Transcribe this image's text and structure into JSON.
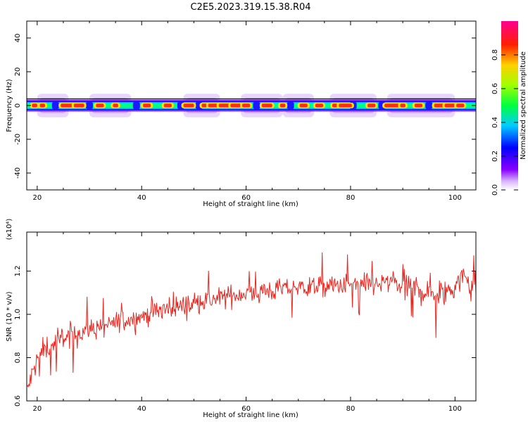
{
  "title": "C2E5.2023.319.15.38.R04",
  "chart_data": [
    {
      "type": "heatmap",
      "xlabel": "Height of straight line (km)",
      "ylabel": "Frequency (Hz)",
      "xlim": [
        18,
        104
      ],
      "ylim": [
        -50,
        50
      ],
      "xticks": [
        "20",
        "40",
        "60",
        "80",
        "100"
      ],
      "yticks": [
        "40",
        "20",
        "0",
        "-20",
        "-40"
      ],
      "xtick_values": [
        20,
        40,
        60,
        80,
        100
      ],
      "ytick_values": [
        40,
        20,
        0,
        -20,
        -40
      ],
      "band": {
        "center_frequency": 0,
        "half_width": 2,
        "halo_half_width": 7,
        "hot_spots_x": [
          19.5,
          21,
          26,
          28,
          32,
          35,
          41,
          45,
          49,
          52,
          54,
          56,
          58,
          60,
          64,
          67,
          71,
          74,
          77,
          79,
          84,
          88,
          90,
          93,
          97,
          99,
          101
        ],
        "hot_spots_width": [
          1,
          1,
          3,
          2,
          1.5,
          1,
          1.5,
          1.5,
          2,
          1,
          2.5,
          2.5,
          2,
          1.5,
          2,
          1,
          1.5,
          1.5,
          1,
          2.5,
          1.5,
          3,
          1,
          1.5,
          2,
          2,
          1.5
        ],
        "dropouts_x": [
          23.5,
          30,
          39,
          47.5,
          51,
          62,
          68.5,
          80.5,
          86,
          95
        ],
        "halo_x": [
          [
            20,
            26
          ],
          [
            30,
            38
          ],
          [
            48,
            55
          ],
          [
            59,
            67
          ],
          [
            67,
            73
          ],
          [
            76,
            85
          ],
          [
            87,
            100
          ]
        ]
      },
      "colorbar": {
        "label": "Normalized spectral amplitude",
        "ticks": [
          "0.0",
          "0.2",
          "0.4",
          "0.6",
          "0.8"
        ],
        "tick_values": [
          0,
          0.2,
          0.4,
          0.6,
          0.8
        ],
        "range": [
          0,
          1
        ]
      }
    },
    {
      "type": "line",
      "xlabel": "Height of straight line (km)",
      "ylabel": "SNR (10 * v/v)",
      "exponent_label": "(x10⁴)",
      "xlim": [
        18,
        104
      ],
      "ylim": [
        0.6,
        1.38
      ],
      "xticks": [
        "20",
        "40",
        "60",
        "80",
        "100"
      ],
      "yticks": [
        "1.2",
        "1.0",
        "0.8",
        "0.6"
      ],
      "xtick_values": [
        20,
        40,
        60,
        80,
        100
      ],
      "ytick_values": [
        1.2,
        1.0,
        0.8,
        0.6
      ],
      "series": [
        {
          "color": "#e8261f",
          "x": [
            18,
            19,
            20,
            21,
            22,
            23,
            24,
            25,
            26,
            27,
            28,
            29,
            30,
            32,
            34,
            36,
            38,
            40,
            42,
            44,
            46,
            48,
            50,
            52,
            54,
            56,
            58,
            60,
            62,
            64,
            66,
            68,
            70,
            72,
            74,
            76,
            78,
            80,
            82,
            84,
            86,
            88,
            90,
            92,
            94,
            96,
            98,
            100,
            101,
            102,
            103,
            104
          ],
          "y": [
            0.64,
            0.72,
            0.79,
            0.83,
            0.85,
            0.86,
            0.87,
            0.89,
            0.9,
            0.9,
            0.91,
            0.92,
            0.93,
            0.94,
            0.95,
            0.97,
            0.98,
            0.99,
            1.01,
            1.02,
            1.03,
            1.04,
            1.05,
            1.06,
            1.07,
            1.08,
            1.09,
            1.1,
            1.1,
            1.11,
            1.11,
            1.12,
            1.12,
            1.13,
            1.13,
            1.13,
            1.13,
            1.14,
            1.13,
            1.14,
            1.14,
            1.15,
            1.13,
            1.12,
            1.11,
            1.1,
            1.1,
            1.13,
            1.16,
            1.17,
            1.14,
            1.12
          ],
          "noise_amplitude": 0.05
        }
      ]
    }
  ]
}
